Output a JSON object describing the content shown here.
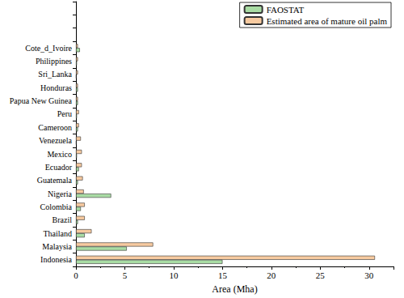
{
  "chart_data": {
    "type": "bar",
    "orientation": "horizontal",
    "x_label": "Area (Mha)",
    "categories": [
      "Indonesia",
      "Malaysia",
      "Thailand",
      "Brazil",
      "Colombia",
      "Nigeria",
      "Guatemala",
      "Ecuador",
      "Mexico",
      "Venezuela",
      "Cameroon",
      "Peru",
      "Papua New Guinea",
      "Honduras",
      "Sri_Lanka",
      "Philippines",
      "Cote_d_Ivoire",
      null,
      null,
      null
    ],
    "series": [
      {
        "name": "FAOSTAT",
        "color": "#a9dca4",
        "values": [
          15.0,
          5.2,
          0.9,
          0.2,
          0.5,
          3.6,
          0.2,
          0.3,
          0.1,
          0.05,
          0.2,
          0.1,
          0.2,
          0.2,
          0.05,
          0.1,
          0.4,
          null,
          null,
          null
        ]
      },
      {
        "name": "Estimated area of mature oil palm",
        "color": "#f7caa0",
        "values": [
          30.6,
          7.9,
          1.6,
          0.9,
          0.9,
          0.8,
          0.7,
          0.6,
          0.6,
          0.5,
          0.3,
          0.3,
          0.2,
          0.2,
          0.2,
          0.2,
          0.2,
          null,
          null,
          null
        ]
      }
    ],
    "xlim": [
      0,
      32.5
    ],
    "xticks": [
      0,
      5,
      10,
      15,
      20,
      25,
      30
    ],
    "grid": false,
    "legend": "upper right"
  }
}
